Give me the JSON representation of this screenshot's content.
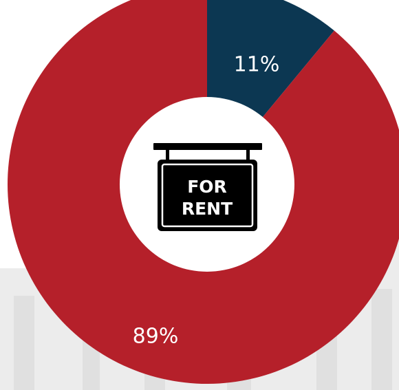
{
  "chart_data": {
    "type": "pie",
    "style": "donut",
    "categories": [
      "Blue segment",
      "Red segment"
    ],
    "values": [
      11,
      89
    ],
    "labels": [
      "11%",
      "89%"
    ],
    "colors": [
      "#0c3752",
      "#b5202a"
    ],
    "title": "",
    "legend": "none"
  },
  "center_icon": {
    "name": "for-rent-sign-icon",
    "line1": "FOR",
    "line2": "RENT",
    "sign_color": "#000000",
    "text_color": "#ffffff"
  },
  "background": {
    "description_icon": "city-skyline-watermark",
    "color": "#e4e4e4"
  }
}
